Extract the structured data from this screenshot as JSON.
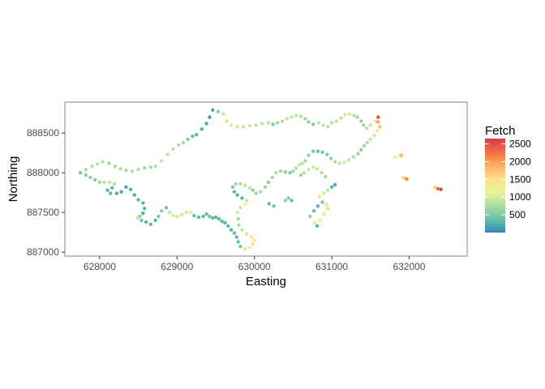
{
  "chart_data": {
    "type": "scatter",
    "title": "",
    "xlabel": "Easting",
    "ylabel": "Northing",
    "xlim": [
      627550,
      632750
    ],
    "ylim": [
      886950,
      888890
    ],
    "x_ticks": [
      628000,
      629000,
      630000,
      631000,
      632000
    ],
    "x_tick_labels": [
      "628000",
      "629000",
      "630000",
      "631000",
      "632000"
    ],
    "y_ticks": [
      887000,
      887500,
      888000,
      888500
    ],
    "y_tick_labels": [
      "887000",
      "887500",
      "888000",
      "888500"
    ],
    "grid": false,
    "legend": {
      "title": "Fetch",
      "placement": "right",
      "range": [
        0,
        2650
      ],
      "breaks": [
        500,
        1000,
        1500,
        2000,
        2500
      ],
      "break_labels": [
        "500",
        "1000",
        "1500",
        "2000",
        "2500"
      ],
      "colors": [
        "#3288bd",
        "#66c2a5",
        "#abdda4",
        "#e6f598",
        "#fee08b",
        "#fdae61",
        "#f46d43",
        "#d53e4f"
      ]
    },
    "series": [
      {
        "points": [
          [
            627750,
            888000,
            500
          ],
          [
            627820,
            888040,
            700
          ],
          [
            627900,
            888080,
            800
          ],
          [
            627970,
            888110,
            850
          ],
          [
            628040,
            888140,
            800
          ],
          [
            628120,
            888120,
            700
          ],
          [
            628200,
            888080,
            750
          ],
          [
            628270,
            888050,
            800
          ],
          [
            628340,
            888030,
            700
          ],
          [
            628420,
            888020,
            750
          ],
          [
            628500,
            888040,
            800
          ],
          [
            628580,
            888060,
            700
          ],
          [
            628660,
            888070,
            750
          ],
          [
            628720,
            888080,
            800
          ],
          [
            628800,
            888150,
            900
          ],
          [
            628880,
            888230,
            900
          ],
          [
            628950,
            888300,
            850
          ],
          [
            629020,
            888350,
            800
          ],
          [
            629080,
            888380,
            700
          ],
          [
            629140,
            888420,
            500
          ],
          [
            629200,
            888460,
            350
          ],
          [
            629250,
            888480,
            300
          ],
          [
            629320,
            888550,
            250
          ],
          [
            629380,
            888620,
            200
          ],
          [
            629420,
            888700,
            150
          ],
          [
            629460,
            888790,
            200
          ],
          [
            629530,
            888770,
            600
          ],
          [
            629600,
            888740,
            900
          ],
          [
            629640,
            888650,
            950
          ],
          [
            629700,
            888600,
            1000
          ],
          [
            629780,
            888580,
            950
          ],
          [
            629860,
            888580,
            900
          ],
          [
            629940,
            888590,
            950
          ],
          [
            630020,
            888600,
            900
          ],
          [
            630100,
            888620,
            850
          ],
          [
            630180,
            888630,
            800
          ],
          [
            630240,
            888610,
            500
          ],
          [
            630300,
            888630,
            700
          ],
          [
            630360,
            888650,
            800
          ],
          [
            630420,
            888680,
            950
          ],
          [
            630480,
            888700,
            900
          ],
          [
            630540,
            888720,
            900
          ],
          [
            630600,
            888710,
            850
          ],
          [
            630660,
            888680,
            700
          ],
          [
            630700,
            888640,
            600
          ],
          [
            630760,
            888610,
            500
          ],
          [
            630830,
            888630,
            900
          ],
          [
            630890,
            888600,
            900
          ],
          [
            630950,
            888580,
            850
          ],
          [
            631000,
            888630,
            800
          ],
          [
            631060,
            888650,
            850
          ],
          [
            631120,
            888690,
            900
          ],
          [
            631170,
            888730,
            1000
          ],
          [
            631230,
            888740,
            1000
          ],
          [
            631290,
            888720,
            800
          ],
          [
            631330,
            888700,
            700
          ],
          [
            631380,
            888650,
            600
          ],
          [
            631410,
            888600,
            700
          ],
          [
            631450,
            888560,
            850
          ],
          [
            631500,
            888600,
            900
          ],
          [
            631560,
            888650,
            1500
          ],
          [
            631600,
            888700,
            2500
          ]
        ]
      },
      {
        "points": [
          [
            627750,
            888000,
            500
          ],
          [
            627820,
            887970,
            600
          ],
          [
            627880,
            887940,
            600
          ],
          [
            627940,
            887910,
            500
          ],
          [
            628000,
            887880,
            700
          ],
          [
            628060,
            887880,
            800
          ],
          [
            628130,
            887880,
            850
          ],
          [
            628190,
            887860,
            800
          ],
          [
            628160,
            887810,
            300
          ],
          [
            628100,
            887780,
            300
          ],
          [
            628140,
            887740,
            300
          ],
          [
            628220,
            887740,
            250
          ],
          [
            628280,
            887760,
            200
          ],
          [
            628340,
            887820,
            200
          ],
          [
            628400,
            887790,
            250
          ],
          [
            628450,
            887720,
            250
          ],
          [
            628500,
            887660,
            300
          ],
          [
            628560,
            887620,
            300
          ],
          [
            628580,
            887550,
            300
          ],
          [
            628560,
            887490,
            250
          ],
          [
            628520,
            887450,
            600
          ],
          [
            628490,
            887430,
            900
          ],
          [
            628540,
            887400,
            400
          ],
          [
            628600,
            887380,
            300
          ],
          [
            628660,
            887350,
            300
          ],
          [
            628720,
            887400,
            300
          ],
          [
            628760,
            887450,
            500
          ],
          [
            628800,
            887520,
            600
          ],
          [
            628860,
            887560,
            400
          ],
          [
            628900,
            887500,
            900
          ],
          [
            628950,
            887460,
            1000
          ],
          [
            629000,
            887450,
            1000
          ],
          [
            629060,
            887470,
            950
          ],
          [
            629120,
            887500,
            1000
          ],
          [
            629180,
            887500,
            1050
          ],
          [
            629220,
            887460,
            400
          ],
          [
            629280,
            887440,
            350
          ],
          [
            629340,
            887450,
            300
          ],
          [
            629380,
            887480,
            350
          ],
          [
            629420,
            887450,
            400
          ],
          [
            629460,
            887430,
            350
          ],
          [
            629500,
            887440,
            300
          ],
          [
            629540,
            887420,
            300
          ],
          [
            629580,
            887390,
            300
          ],
          [
            629620,
            887370,
            300
          ],
          [
            629660,
            887330,
            300
          ],
          [
            629700,
            887280,
            300
          ],
          [
            629740,
            887240,
            350
          ],
          [
            629770,
            887190,
            300
          ],
          [
            629790,
            887130,
            400
          ],
          [
            629820,
            887070,
            500
          ],
          [
            629880,
            887040,
            1000
          ],
          [
            629940,
            887060,
            1100
          ],
          [
            629980,
            887100,
            1400
          ],
          [
            630000,
            887150,
            1500
          ],
          [
            629960,
            887190,
            1400
          ],
          [
            629900,
            887230,
            1000
          ],
          [
            629840,
            887280,
            900
          ],
          [
            629800,
            887340,
            800
          ],
          [
            629790,
            887420,
            700
          ],
          [
            629780,
            887500,
            1000
          ],
          [
            629820,
            887560,
            950
          ],
          [
            629880,
            887600,
            1100
          ],
          [
            629900,
            887650,
            900
          ],
          [
            629840,
            887680,
            300
          ],
          [
            629780,
            887720,
            300
          ],
          [
            629740,
            887760,
            350
          ],
          [
            629720,
            887820,
            500
          ],
          [
            629760,
            887860,
            700
          ],
          [
            629820,
            887860,
            800
          ],
          [
            629880,
            887840,
            900
          ],
          [
            629940,
            887810,
            900
          ],
          [
            629980,
            887780,
            600
          ],
          [
            630020,
            887740,
            700
          ],
          [
            630080,
            887760,
            800
          ],
          [
            630140,
            887820,
            700
          ],
          [
            630180,
            887880,
            550
          ],
          [
            630230,
            887940,
            700
          ],
          [
            630280,
            888000,
            800
          ],
          [
            630340,
            888020,
            700
          ],
          [
            630400,
            888010,
            600
          ],
          [
            630460,
            888000,
            550
          ],
          [
            630500,
            888020,
            700
          ],
          [
            630540,
            888060,
            800
          ],
          [
            630580,
            888100,
            900
          ],
          [
            630620,
            888120,
            800
          ],
          [
            630660,
            888150,
            700
          ],
          [
            630700,
            888220,
            600
          ],
          [
            630760,
            888270,
            500
          ],
          [
            630820,
            888270,
            400
          ],
          [
            630880,
            888260,
            450
          ],
          [
            630940,
            888230,
            500
          ],
          [
            630990,
            888180,
            600
          ],
          [
            631040,
            888140,
            800
          ],
          [
            631100,
            888120,
            900
          ],
          [
            631160,
            888130,
            1000
          ],
          [
            631220,
            888160,
            900
          ],
          [
            631280,
            888200,
            800
          ],
          [
            631340,
            888240,
            700
          ],
          [
            631380,
            888290,
            600
          ],
          [
            631420,
            888340,
            700
          ],
          [
            631460,
            888380,
            800
          ],
          [
            631500,
            888420,
            900
          ],
          [
            631550,
            888470,
            1000
          ],
          [
            631590,
            888530,
            1500
          ],
          [
            631620,
            888580,
            1800
          ],
          [
            631600,
            888640,
            2000
          ]
        ]
      },
      {
        "points": [
          [
            630400,
            887650,
            600
          ],
          [
            630440,
            887680,
            500
          ],
          [
            630480,
            887650,
            400
          ],
          [
            630190,
            887610,
            300
          ],
          [
            630250,
            887580,
            400
          ],
          [
            630720,
            887450,
            600
          ],
          [
            630770,
            887520,
            400
          ],
          [
            630820,
            887580,
            300
          ],
          [
            630880,
            887630,
            500
          ],
          [
            630930,
            887600,
            1000
          ],
          [
            630950,
            887550,
            1600
          ],
          [
            630900,
            887480,
            1400
          ],
          [
            630850,
            887400,
            1200
          ],
          [
            630810,
            887330,
            300
          ],
          [
            630780,
            887370,
            1500
          ],
          [
            630840,
            887700,
            1500
          ],
          [
            630900,
            887740,
            1000
          ],
          [
            630950,
            887780,
            900
          ],
          [
            631000,
            887820,
            300
          ],
          [
            631040,
            887850,
            200
          ],
          [
            630920,
            887950,
            700
          ],
          [
            630870,
            888000,
            800
          ],
          [
            630810,
            888050,
            900
          ],
          [
            630760,
            888070,
            1000
          ],
          [
            630700,
            888040,
            900
          ],
          [
            630640,
            888000,
            800
          ],
          [
            630600,
            887970,
            700
          ],
          [
            631820,
            888200,
            1100
          ],
          [
            631880,
            888210,
            1500
          ],
          [
            631900,
            888220,
            1800
          ],
          [
            631920,
            887940,
            1400
          ],
          [
            631950,
            887930,
            1800
          ],
          [
            631970,
            887920,
            2100
          ],
          [
            632330,
            887820,
            1600
          ],
          [
            632370,
            887800,
            2300
          ],
          [
            632410,
            887790,
            2600
          ]
        ]
      }
    ]
  }
}
